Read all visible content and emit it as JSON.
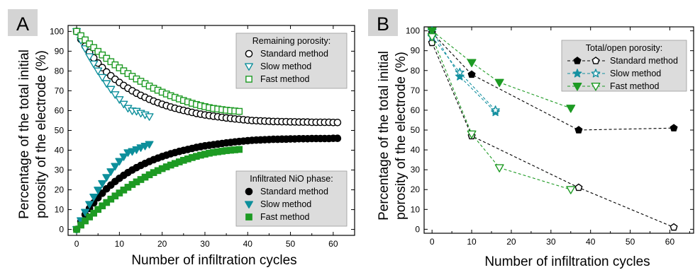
{
  "chart_data": [
    {
      "panel": "A",
      "type": "scatter",
      "xlabel": "Number of infiltration cycles",
      "ylabel": [
        "Percentage of the total initial",
        "porosity of the electrode (%)"
      ],
      "xlim": [
        -2,
        65
      ],
      "ylim": [
        -3,
        103
      ],
      "xticks": [
        "0",
        "10",
        "20",
        "30",
        "40",
        "50",
        "60"
      ],
      "yticks": [
        "0",
        "10",
        "20",
        "30",
        "40",
        "50",
        "60",
        "70",
        "80",
        "90",
        "100"
      ],
      "legends": [
        {
          "title": "Remaining porosity:",
          "placement": "top-right",
          "entries": [
            {
              "label": "Standard method",
              "series": "porosity_standard"
            },
            {
              "label": "Slow method",
              "series": "porosity_slow"
            },
            {
              "label": "Fast method",
              "series": "porosity_fast"
            }
          ]
        },
        {
          "title": "Infiltrated NiO phase:",
          "placement": "bottom-right",
          "entries": [
            {
              "label": "Standard method",
              "series": "nio_standard"
            },
            {
              "label": "Slow method",
              "series": "nio_slow"
            },
            {
              "label": "Fast method",
              "series": "nio_fast"
            }
          ]
        }
      ],
      "series": [
        {
          "id": "porosity_standard",
          "marker": "circle-open",
          "color": "#000000",
          "x": [
            0,
            1,
            2,
            3,
            4,
            5,
            6,
            7,
            8,
            9,
            10,
            11,
            12,
            13,
            14,
            15,
            16,
            17,
            18,
            19,
            20,
            21,
            22,
            23,
            24,
            25,
            26,
            27,
            28,
            29,
            30,
            31,
            32,
            33,
            34,
            35,
            36,
            37,
            38,
            39,
            40,
            41,
            42,
            43,
            44,
            45,
            46,
            47,
            48,
            49,
            50,
            51,
            52,
            53,
            54,
            55,
            56,
            57,
            58,
            59,
            60,
            61
          ],
          "y": [
            100,
            96,
            92.5,
            89.4,
            86.6,
            84,
            81.7,
            79.5,
            77.6,
            75.8,
            74.2,
            72.7,
            71.3,
            70,
            68.8,
            67.7,
            66.7,
            65.7,
            64.8,
            64,
            63.2,
            62.5,
            61.8,
            61.2,
            60.6,
            60.1,
            59.6,
            59.1,
            58.6,
            58.2,
            57.8,
            57.5,
            57.2,
            56.9,
            56.6,
            56.3,
            56.1,
            55.8,
            55.6,
            55.4,
            55.2,
            55,
            54.9,
            54.8,
            54.7,
            54.6,
            54.5,
            54.5,
            54.4,
            54.4,
            54.3,
            54.3,
            54.2,
            54.2,
            54.2,
            54.1,
            54.1,
            54.1,
            54.1,
            54.1,
            54,
            54
          ]
        },
        {
          "id": "porosity_slow",
          "marker": "triangle-down-open",
          "color": "#0d8f9b",
          "x": [
            0,
            1,
            2,
            3,
            4,
            5,
            6,
            7,
            8,
            9,
            10,
            11,
            12,
            13,
            14,
            15,
            16,
            17
          ],
          "y": [
            100,
            95.5,
            91.3,
            87.3,
            83.6,
            80.1,
            76.8,
            73.7,
            70.8,
            68.1,
            65.6,
            63.3,
            61.2,
            59.9,
            59.7,
            58.7,
            57.9,
            57
          ]
        },
        {
          "id": "porosity_fast",
          "marker": "square-open",
          "color": "#1d9a23",
          "x": [
            0,
            1,
            2,
            3,
            4,
            5,
            6,
            7,
            8,
            9,
            10,
            11,
            12,
            13,
            14,
            15,
            16,
            17,
            18,
            19,
            20,
            21,
            22,
            23,
            24,
            25,
            26,
            27,
            28,
            29,
            30,
            31,
            32,
            33,
            34,
            35,
            36,
            37,
            38
          ],
          "y": [
            100,
            97.8,
            95.7,
            93.7,
            91.8,
            89.9,
            88.1,
            86.4,
            84.7,
            83.1,
            81.6,
            80.1,
            78.7,
            77.3,
            76,
            74.8,
            73.6,
            72.4,
            71.3,
            70.3,
            69.3,
            68.4,
            67.5,
            66.7,
            65.9,
            65.1,
            64.4,
            63.7,
            63.1,
            62.5,
            62,
            61.5,
            61.1,
            60.8,
            60.5,
            60.2,
            60,
            59.8,
            59.6
          ]
        },
        {
          "id": "nio_standard",
          "marker": "circle-filled",
          "color": "#000000",
          "x": [
            0,
            1,
            2,
            3,
            4,
            5,
            6,
            7,
            8,
            9,
            10,
            11,
            12,
            13,
            14,
            15,
            16,
            17,
            18,
            19,
            20,
            21,
            22,
            23,
            24,
            25,
            26,
            27,
            28,
            29,
            30,
            31,
            32,
            33,
            34,
            35,
            36,
            37,
            38,
            39,
            40,
            41,
            42,
            43,
            44,
            45,
            46,
            47,
            48,
            49,
            50,
            51,
            52,
            53,
            54,
            55,
            56,
            57,
            58,
            59,
            60,
            61
          ],
          "y": [
            0,
            4,
            7.5,
            10.6,
            13.4,
            16,
            18.3,
            20.5,
            22.4,
            24.2,
            25.8,
            27.3,
            28.7,
            30,
            31.2,
            32.3,
            33.3,
            34.3,
            35.2,
            36,
            36.8,
            37.5,
            38.2,
            38.8,
            39.4,
            39.9,
            40.4,
            40.9,
            41.4,
            41.8,
            42.2,
            42.5,
            42.8,
            43.1,
            43.4,
            43.7,
            43.9,
            44.2,
            44.4,
            44.6,
            44.8,
            45,
            45.1,
            45.2,
            45.3,
            45.4,
            45.5,
            45.5,
            45.6,
            45.6,
            45.7,
            45.7,
            45.8,
            45.8,
            45.8,
            45.9,
            45.9,
            45.9,
            45.9,
            45.9,
            46,
            46
          ]
        },
        {
          "id": "nio_slow",
          "marker": "triangle-down-filled",
          "color": "#0d8f9b",
          "x": [
            0,
            1,
            2,
            3,
            4,
            5,
            6,
            7,
            8,
            9,
            10,
            11,
            12,
            13,
            14,
            15,
            16,
            17
          ],
          "y": [
            0,
            4.5,
            8.7,
            12.7,
            16.4,
            19.9,
            23.2,
            26.3,
            29.2,
            31.9,
            34.4,
            36.7,
            38.8,
            39.4,
            40.3,
            41.3,
            42.1,
            43
          ]
        },
        {
          "id": "nio_fast",
          "marker": "square-filled",
          "color": "#1d9a23",
          "x": [
            0,
            1,
            2,
            3,
            4,
            5,
            6,
            7,
            8,
            9,
            10,
            11,
            12,
            13,
            14,
            15,
            16,
            17,
            18,
            19,
            20,
            21,
            22,
            23,
            24,
            25,
            26,
            27,
            28,
            29,
            30,
            31,
            32,
            33,
            34,
            35,
            36,
            37,
            38
          ],
          "y": [
            0,
            2.2,
            4.3,
            6.3,
            8.2,
            10.1,
            11.9,
            13.6,
            15.3,
            16.9,
            18.4,
            19.9,
            21.3,
            22.7,
            24,
            25.2,
            26.4,
            27.6,
            28.7,
            29.7,
            30.7,
            31.6,
            32.5,
            33.3,
            34.1,
            34.9,
            35.6,
            36.3,
            36.9,
            37.5,
            38,
            38.5,
            38.9,
            39.2,
            39.5,
            39.8,
            40,
            40.2,
            40.4
          ]
        }
      ]
    },
    {
      "panel": "B",
      "type": "line",
      "xlabel": "Number of infiltration cycles",
      "ylabel": [
        "Percentage of the total initial",
        "porosity of the electrode (%)"
      ],
      "xlim": [
        -2,
        66
      ],
      "ylim": [
        -2,
        102
      ],
      "xticks": [
        "0",
        "10",
        "20",
        "30",
        "40",
        "50",
        "60"
      ],
      "yticks": [
        "0",
        "10",
        "20",
        "30",
        "40",
        "50",
        "60",
        "70",
        "80",
        "90",
        "100"
      ],
      "legends": [
        {
          "title": "Total/open porosity:",
          "placement": "top-right",
          "entries": [
            {
              "label": "Standard method",
              "series": [
                "total_standard",
                "open_standard"
              ]
            },
            {
              "label": "Slow method",
              "series": [
                "total_slow",
                "open_slow"
              ]
            },
            {
              "label": "Fast method",
              "series": [
                "total_fast",
                "open_fast"
              ]
            }
          ]
        }
      ],
      "series": [
        {
          "id": "total_standard",
          "marker": "pentagon-filled",
          "color": "#000000",
          "dashed": true,
          "x": [
            0,
            10,
            37,
            61
          ],
          "y": [
            99,
            78,
            50,
            51
          ]
        },
        {
          "id": "open_standard",
          "marker": "pentagon-open",
          "color": "#000000",
          "dashed": true,
          "x": [
            0,
            10,
            37,
            61
          ],
          "y": [
            94,
            47,
            21,
            1
          ]
        },
        {
          "id": "total_slow",
          "marker": "star-filled",
          "color": "#1590a0",
          "dashed": true,
          "x": [
            0,
            7,
            16
          ],
          "y": [
            100,
            77,
            59
          ]
        },
        {
          "id": "open_slow",
          "marker": "star-open",
          "color": "#1590a0",
          "dashed": true,
          "x": [
            0,
            7,
            16
          ],
          "y": [
            97,
            79,
            60
          ]
        },
        {
          "id": "total_fast",
          "marker": "triangle-down-filled",
          "color": "#1d9a23",
          "dashed": true,
          "x": [
            0,
            10,
            17,
            35
          ],
          "y": [
            100,
            84,
            74,
            61
          ]
        },
        {
          "id": "open_fast",
          "marker": "triangle-down-open",
          "color": "#1d9a23",
          "dashed": true,
          "x": [
            0,
            10,
            17,
            35
          ],
          "y": [
            97,
            48,
            31,
            20
          ]
        }
      ]
    }
  ]
}
